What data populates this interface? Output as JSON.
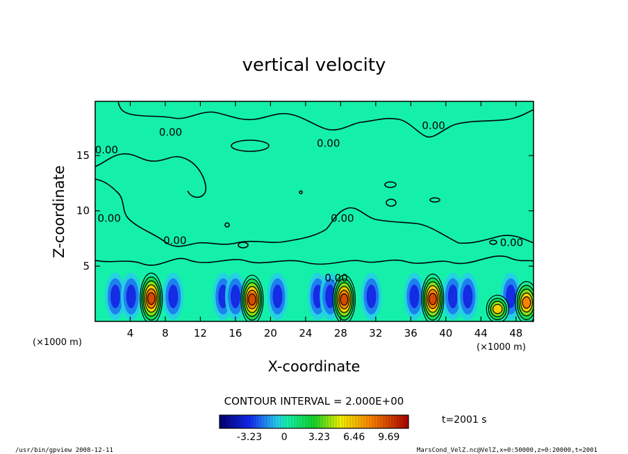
{
  "chart_data": {
    "type": "heatmap",
    "title": "vertical velocity",
    "xlabel": "X-coordinate",
    "ylabel": "Z-coordinate",
    "xunit_label": "(×1000 m)",
    "yunit_label": "(×1000 m)",
    "xlim": [
      0,
      50
    ],
    "ylim": [
      0,
      19.9
    ],
    "xticks": [
      "4",
      "8",
      "12",
      "16",
      "20",
      "24",
      "28",
      "32",
      "36",
      "40",
      "44",
      "48"
    ],
    "yticks": [
      "5",
      "10",
      "15"
    ],
    "contour_interval_text": "CONTOUR INTERVAL = 2.000E+00",
    "time_text": "t=2001 s",
    "colorbar": {
      "ticks": [
        "-3.23",
        "0",
        "3.23",
        "6.46",
        "9.69"
      ],
      "min": -6.0,
      "max": 11.5
    },
    "contour_labels": [
      {
        "text": "0.00",
        "x": 8.6,
        "y": 16.8
      },
      {
        "text": "0.00",
        "x": 26.6,
        "y": 15.8
      },
      {
        "text": "0.00",
        "x": 38.6,
        "y": 17.4
      },
      {
        "text": "0.00",
        "x": 1.3,
        "y": 15.2
      },
      {
        "text": "0.00",
        "x": 1.6,
        "y": 9.0
      },
      {
        "text": "0.00",
        "x": 9.1,
        "y": 7.0
      },
      {
        "text": "0.00",
        "x": 28.2,
        "y": 9.0
      },
      {
        "text": "0.00",
        "x": 47.5,
        "y": 6.8
      },
      {
        "text": "0.00",
        "x": 27.5,
        "y": 3.6
      }
    ],
    "updrafts": [
      {
        "x": 6.4,
        "zmax": 4.6,
        "peak": 9.7
      },
      {
        "x": 17.9,
        "zmax": 4.4,
        "peak": 9.7
      },
      {
        "x": 28.4,
        "zmax": 4.4,
        "peak": 9.7
      },
      {
        "x": 38.5,
        "zmax": 4.5,
        "peak": 9.7
      },
      {
        "x": 45.9,
        "zmax": 2.5,
        "peak": 6.5
      },
      {
        "x": 49.2,
        "zmax": 3.8,
        "peak": 8.0
      }
    ],
    "downdrafts": [
      {
        "x": 2.3
      },
      {
        "x": 4.1
      },
      {
        "x": 8.9
      },
      {
        "x": 14.6
      },
      {
        "x": 16.0
      },
      {
        "x": 20.8
      },
      {
        "x": 25.4
      },
      {
        "x": 26.8
      },
      {
        "x": 31.5
      },
      {
        "x": 36.4
      },
      {
        "x": 40.8
      },
      {
        "x": 42.5
      },
      {
        "x": 47.4
      }
    ]
  },
  "footer": {
    "left_text": "/usr/bin/gpview   2008-12-11",
    "right_text": "MarsCond_VelZ.nc@VelZ,x=0:50000,z=0:20000,t=2001"
  }
}
